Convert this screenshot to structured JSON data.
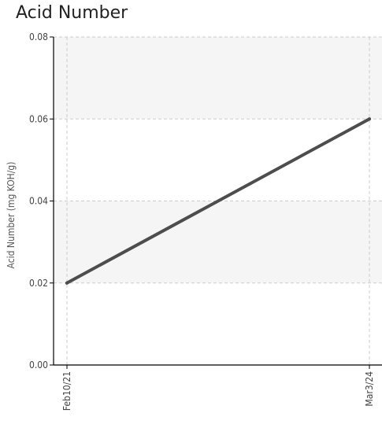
{
  "chart_data": {
    "type": "line",
    "title": "Acid Number",
    "xlabel": "",
    "ylabel": "Acid Number (mg KOH/g)",
    "categories": [
      "Feb10/21",
      "Mar3/24"
    ],
    "x": [
      "Feb10/21",
      "Mar3/24"
    ],
    "series": [
      {
        "values": [
          0.02,
          0.06
        ],
        "color": "#4d4d4d"
      }
    ],
    "ylim": [
      0,
      0.08
    ],
    "yticks": [
      "0.00",
      "0.02",
      "0.04",
      "0.06",
      "0.08"
    ],
    "grid": true,
    "legend": "none",
    "band_color": "#f5f5f5",
    "grid_color": "#cccccc",
    "axis_color": "#000000"
  }
}
